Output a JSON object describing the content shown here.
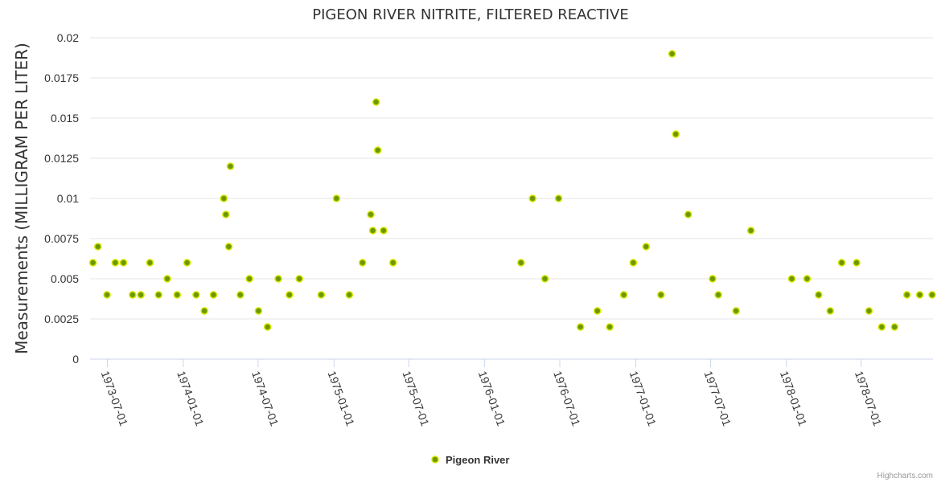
{
  "chart_data": {
    "type": "scatter",
    "title": "PIGEON RIVER NITRITE, FILTERED REACTIVE",
    "ylabel": "Measurements (MILLIGRAM PER LITER)",
    "xlabel": "",
    "ylim": [
      0,
      0.02
    ],
    "yticks": [
      "0",
      "0.0025",
      "0.005",
      "0.0075",
      "0.01",
      "0.0125",
      "0.015",
      "0.0175",
      "0.02"
    ],
    "xlim": [
      "1973-05-20",
      "1978-12-22"
    ],
    "xticks": [
      "1973-07-01",
      "1974-01-01",
      "1974-07-01",
      "1975-01-01",
      "1975-07-01",
      "1976-01-01",
      "1976-07-01",
      "1977-01-01",
      "1977-07-01",
      "1978-01-01",
      "1978-07-01"
    ],
    "grid": true,
    "legend_position": "bottom-center",
    "series": [
      {
        "name": "Pigeon River",
        "color": "#6b9a00",
        "points": [
          [
            "1973-05-27",
            0.006
          ],
          [
            "1973-06-08",
            0.007
          ],
          [
            "1973-06-30",
            0.004
          ],
          [
            "1973-07-20",
            0.006
          ],
          [
            "1973-08-09",
            0.006
          ],
          [
            "1973-08-31",
            0.004
          ],
          [
            "1973-09-20",
            0.004
          ],
          [
            "1973-10-12",
            0.006
          ],
          [
            "1973-11-02",
            0.004
          ],
          [
            "1973-11-23",
            0.005
          ],
          [
            "1973-12-17",
            0.004
          ],
          [
            "1974-01-10",
            0.006
          ],
          [
            "1974-02-01",
            0.004
          ],
          [
            "1974-02-21",
            0.003
          ],
          [
            "1974-03-15",
            0.004
          ],
          [
            "1974-04-09",
            0.01
          ],
          [
            "1974-04-14",
            0.009
          ],
          [
            "1974-04-21",
            0.007
          ],
          [
            "1974-04-25",
            0.012
          ],
          [
            "1974-05-19",
            0.004
          ],
          [
            "1974-06-10",
            0.005
          ],
          [
            "1974-07-02",
            0.003
          ],
          [
            "1974-07-24",
            0.002
          ],
          [
            "1974-08-19",
            0.005
          ],
          [
            "1974-09-15",
            0.004
          ],
          [
            "1974-10-09",
            0.005
          ],
          [
            "1974-12-01",
            0.004
          ],
          [
            "1975-01-07",
            0.01
          ],
          [
            "1975-02-07",
            0.004
          ],
          [
            "1975-03-11",
            0.006
          ],
          [
            "1975-03-31",
            0.009
          ],
          [
            "1975-04-05",
            0.008
          ],
          [
            "1975-04-13",
            0.016
          ],
          [
            "1975-04-17",
            0.013
          ],
          [
            "1975-05-01",
            0.008
          ],
          [
            "1975-05-24",
            0.006
          ],
          [
            "1976-03-29",
            0.006
          ],
          [
            "1976-04-26",
            0.01
          ],
          [
            "1976-05-26",
            0.005
          ],
          [
            "1976-06-28",
            0.01
          ],
          [
            "1976-08-20",
            0.002
          ],
          [
            "1976-09-30",
            0.003
          ],
          [
            "1976-10-30",
            0.002
          ],
          [
            "1976-12-03",
            0.004
          ],
          [
            "1976-12-26",
            0.006
          ],
          [
            "1977-01-26",
            0.007
          ],
          [
            "1977-03-03",
            0.004
          ],
          [
            "1977-03-30",
            0.019
          ],
          [
            "1977-04-08",
            0.014
          ],
          [
            "1977-05-08",
            0.009
          ],
          [
            "1977-07-06",
            0.005
          ],
          [
            "1977-07-20",
            0.004
          ],
          [
            "1977-09-01",
            0.003
          ],
          [
            "1977-10-07",
            0.008
          ],
          [
            "1978-01-14",
            0.005
          ],
          [
            "1978-02-20",
            0.005
          ],
          [
            "1978-03-20",
            0.004
          ],
          [
            "1978-04-17",
            0.003
          ],
          [
            "1978-05-15",
            0.006
          ],
          [
            "1978-06-20",
            0.006
          ],
          [
            "1978-07-20",
            0.003
          ],
          [
            "1978-08-20",
            0.002
          ],
          [
            "1978-09-20",
            0.002
          ],
          [
            "1978-10-20",
            0.004
          ],
          [
            "1978-11-20",
            0.004
          ],
          [
            "1978-12-20",
            0.004
          ]
        ]
      }
    ]
  },
  "credits": "Highcharts.com"
}
